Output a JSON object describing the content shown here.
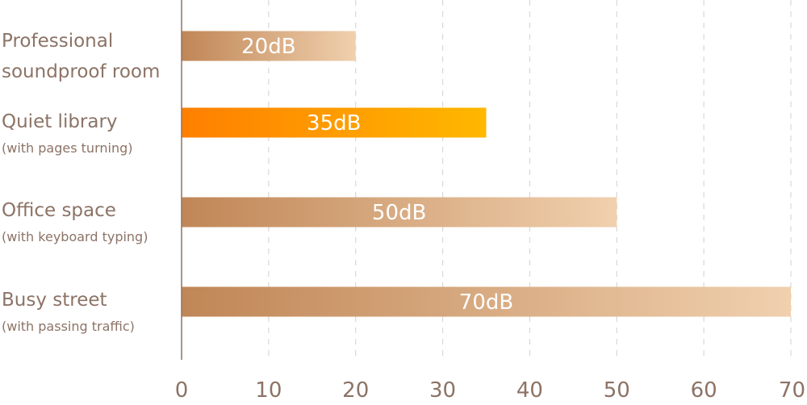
{
  "chart_data": {
    "type": "bar",
    "orientation": "horizontal",
    "categories": [
      {
        "main": "Professional",
        "sub": "soundproof room",
        "sub_style": "main"
      },
      {
        "main": "Quiet library",
        "sub": "(with pages turning)",
        "sub_style": "small"
      },
      {
        "main": "Office space",
        "sub": "(with keyboard typing)",
        "sub_style": "small"
      },
      {
        "main": "Busy street",
        "sub": "(with passing traffic)",
        "sub_style": "small"
      }
    ],
    "values": [
      20,
      35,
      50,
      70
    ],
    "data_labels": [
      "20dB",
      "35dB",
      "50dB",
      "70dB"
    ],
    "highlight_index": 1,
    "xlim": [
      0,
      70
    ],
    "xticks": [
      0,
      10,
      20,
      30,
      40,
      50,
      60,
      70
    ],
    "grid": "vertical dashed",
    "title": "",
    "xlabel": "",
    "ylabel": "",
    "colors": {
      "bar_start": "#c08656",
      "bar_end": "#f0d0ae",
      "highlight_start": "#ff7f00",
      "highlight_end": "#ffb800",
      "text": "#8c7366",
      "axis": "#8c7366",
      "grid": "#d8d8d8"
    }
  }
}
